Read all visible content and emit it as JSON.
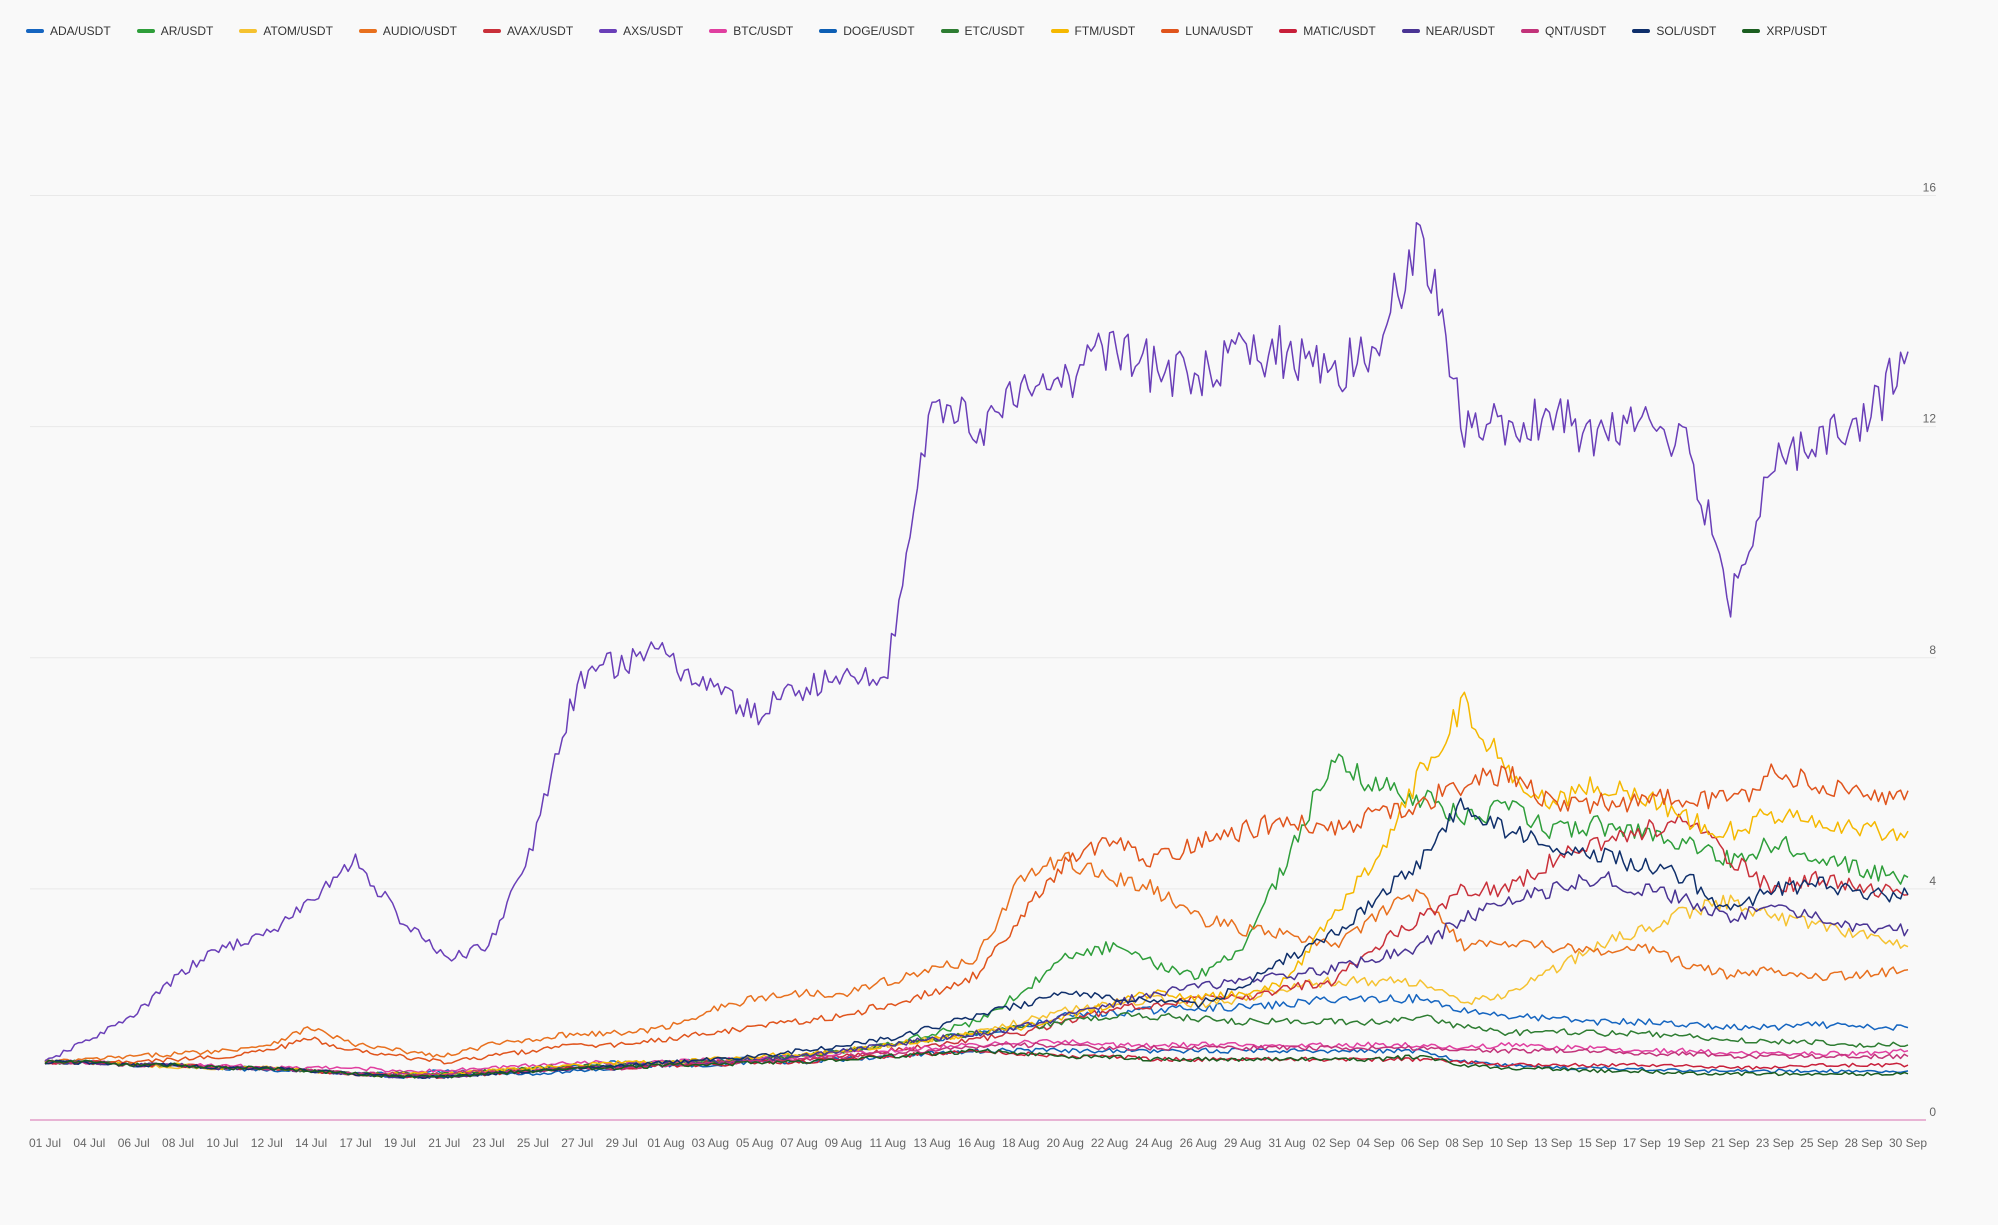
{
  "chart_data": {
    "type": "line",
    "title": "",
    "xlabel": "",
    "ylabel": "",
    "ylim": [
      0,
      18
    ],
    "yticks": [
      0,
      4,
      8,
      12,
      16
    ],
    "grid": "horizontal",
    "legend_position": "top-left",
    "x_ticks": [
      "01 Jul",
      "04 Jul",
      "06 Jul",
      "08 Jul",
      "10 Jul",
      "12 Jul",
      "14 Jul",
      "17 Jul",
      "19 Jul",
      "21 Jul",
      "23 Jul",
      "25 Jul",
      "27 Jul",
      "29 Jul",
      "01 Aug",
      "03 Aug",
      "05 Aug",
      "07 Aug",
      "09 Aug",
      "11 Aug",
      "13 Aug",
      "16 Aug",
      "18 Aug",
      "20 Aug",
      "22 Aug",
      "24 Aug",
      "26 Aug",
      "29 Aug",
      "31 Aug",
      "02 Sep",
      "04 Sep",
      "06 Sep",
      "08 Sep",
      "10 Sep",
      "13 Sep",
      "15 Sep",
      "17 Sep",
      "19 Sep",
      "21 Sep",
      "23 Sep",
      "25 Sep",
      "28 Sep",
      "30 Sep"
    ],
    "series": [
      {
        "name": "ADA/USDT",
        "color": "#1565c0",
        "values": [
          1.0,
          1.0,
          0.95,
          0.95,
          0.9,
          0.9,
          0.85,
          0.8,
          0.8,
          0.85,
          0.85,
          0.9,
          0.95,
          1.0,
          1.0,
          1.05,
          1.05,
          1.1,
          1.2,
          1.3,
          1.4,
          1.5,
          1.6,
          1.8,
          1.85,
          1.9,
          1.95,
          1.95,
          2.0,
          2.1,
          2.1,
          2.1,
          1.9,
          1.8,
          1.75,
          1.7,
          1.7,
          1.65,
          1.6,
          1.6,
          1.65,
          1.6,
          1.6
        ]
      },
      {
        "name": "AR/USDT",
        "color": "#2e9e3a",
        "values": [
          1.0,
          1.0,
          0.95,
          0.95,
          0.9,
          0.9,
          0.85,
          0.8,
          0.75,
          0.8,
          0.85,
          0.85,
          0.9,
          0.95,
          1.0,
          1.0,
          1.05,
          1.1,
          1.2,
          1.3,
          1.5,
          1.7,
          2.2,
          2.8,
          3.0,
          2.7,
          2.5,
          3.0,
          4.5,
          6.2,
          5.8,
          5.6,
          5.2,
          5.4,
          5.0,
          5.1,
          5.0,
          4.8,
          4.5,
          4.8,
          4.6,
          4.3,
          4.2
        ]
      },
      {
        "name": "ATOM/USDT",
        "color": "#f5c230",
        "values": [
          1.0,
          1.0,
          0.95,
          0.9,
          0.9,
          0.9,
          0.85,
          0.8,
          0.75,
          0.8,
          0.85,
          0.9,
          0.9,
          0.95,
          1.0,
          1.0,
          1.05,
          1.1,
          1.2,
          1.3,
          1.4,
          1.5,
          1.7,
          1.9,
          2.0,
          2.1,
          2.0,
          2.1,
          2.3,
          2.4,
          2.4,
          2.4,
          2.0,
          2.2,
          2.6,
          3.0,
          3.3,
          3.6,
          3.8,
          3.5,
          3.4,
          3.2,
          3.0
        ]
      },
      {
        "name": "AUDIO/USDT",
        "color": "#e8701e",
        "values": [
          1.0,
          1.05,
          1.1,
          1.15,
          1.2,
          1.3,
          1.6,
          1.3,
          1.2,
          1.1,
          1.3,
          1.4,
          1.5,
          1.5,
          1.6,
          1.9,
          2.1,
          2.2,
          2.2,
          2.4,
          2.6,
          2.8,
          4.2,
          4.5,
          4.2,
          4.0,
          3.5,
          3.3,
          3.2,
          3.0,
          3.5,
          4.0,
          3.0,
          3.1,
          3.0,
          2.9,
          3.0,
          2.7,
          2.5,
          2.6,
          2.5,
          2.5,
          2.6
        ]
      },
      {
        "name": "AVAX/USDT",
        "color": "#c9303a",
        "values": [
          1.0,
          1.0,
          0.95,
          0.95,
          0.9,
          0.9,
          0.85,
          0.8,
          0.75,
          0.75,
          0.8,
          0.85,
          0.9,
          0.9,
          0.95,
          1.0,
          1.0,
          1.05,
          1.1,
          1.2,
          1.3,
          1.4,
          1.5,
          1.7,
          1.9,
          2.0,
          2.1,
          2.1,
          2.3,
          2.4,
          3.0,
          3.5,
          4.0,
          4.0,
          4.5,
          4.8,
          5.0,
          5.2,
          4.5,
          4.0,
          4.2,
          4.0,
          3.9
        ]
      },
      {
        "name": "AXS/USDT",
        "color": "#6a3fb8",
        "values": [
          1.0,
          1.4,
          1.8,
          2.5,
          3.0,
          3.2,
          3.8,
          4.5,
          3.5,
          2.8,
          3.0,
          4.8,
          7.5,
          8.0,
          8.0,
          7.5,
          7.0,
          7.5,
          7.6,
          7.8,
          12.5,
          12.0,
          12.5,
          12.8,
          13.5,
          13.0,
          12.8,
          13.2,
          13.3,
          13.0,
          13.2,
          15.5,
          12.0,
          12.0,
          12.2,
          11.8,
          12.0,
          11.8,
          9.0,
          11.5,
          11.8,
          12.0,
          13.3
        ]
      },
      {
        "name": "BTC/USDT",
        "color": "#e03fa0",
        "values": [
          1.0,
          1.0,
          0.95,
          0.95,
          0.95,
          0.9,
          0.9,
          0.9,
          0.85,
          0.85,
          0.9,
          0.95,
          1.0,
          1.0,
          1.0,
          1.05,
          1.05,
          1.1,
          1.15,
          1.2,
          1.25,
          1.3,
          1.35,
          1.35,
          1.3,
          1.3,
          1.3,
          1.3,
          1.3,
          1.3,
          1.3,
          1.3,
          1.25,
          1.3,
          1.25,
          1.25,
          1.2,
          1.2,
          1.15,
          1.15,
          1.15,
          1.15,
          1.2
        ]
      },
      {
        "name": "DOGE/USDT",
        "color": "#0d5fb4",
        "values": [
          1.0,
          1.0,
          0.95,
          0.95,
          0.9,
          0.85,
          0.85,
          0.8,
          0.75,
          0.75,
          0.8,
          0.8,
          0.85,
          0.9,
          0.95,
          0.95,
          1.0,
          1.0,
          1.05,
          1.1,
          1.15,
          1.2,
          1.2,
          1.2,
          1.2,
          1.2,
          1.2,
          1.2,
          1.2,
          1.2,
          1.2,
          1.2,
          1.0,
          0.95,
          0.9,
          0.9,
          0.88,
          0.85,
          0.85,
          0.85,
          0.85,
          0.85,
          0.85
        ]
      },
      {
        "name": "ETC/USDT",
        "color": "#2e7d32",
        "values": [
          1.0,
          1.0,
          0.95,
          0.95,
          0.9,
          0.9,
          0.85,
          0.8,
          0.8,
          0.8,
          0.85,
          0.9,
          0.95,
          0.95,
          1.0,
          1.0,
          1.05,
          1.1,
          1.2,
          1.3,
          1.4,
          1.5,
          1.6,
          1.7,
          1.8,
          1.8,
          1.75,
          1.7,
          1.7,
          1.7,
          1.7,
          1.8,
          1.6,
          1.5,
          1.55,
          1.5,
          1.5,
          1.45,
          1.4,
          1.35,
          1.35,
          1.3,
          1.3
        ]
      },
      {
        "name": "FTM/USDT",
        "color": "#f5b800",
        "values": [
          1.0,
          1.0,
          0.95,
          0.95,
          0.9,
          0.9,
          0.85,
          0.8,
          0.8,
          0.8,
          0.85,
          0.9,
          0.95,
          1.0,
          1.0,
          1.05,
          1.1,
          1.15,
          1.2,
          1.3,
          1.4,
          1.5,
          1.6,
          1.8,
          2.0,
          2.2,
          2.1,
          2.2,
          2.4,
          3.5,
          4.5,
          6.0,
          7.2,
          6.0,
          5.5,
          5.8,
          5.6,
          5.2,
          5.0,
          5.3,
          5.2,
          5.0,
          5.0
        ]
      },
      {
        "name": "LUNA/USDT",
        "color": "#e0541c",
        "values": [
          1.0,
          1.0,
          1.0,
          1.05,
          1.1,
          1.2,
          1.4,
          1.2,
          1.1,
          1.0,
          1.1,
          1.2,
          1.3,
          1.3,
          1.4,
          1.5,
          1.6,
          1.7,
          1.8,
          2.0,
          2.2,
          2.5,
          3.5,
          4.5,
          4.8,
          4.5,
          4.8,
          5.0,
          5.2,
          5.0,
          5.3,
          5.5,
          5.8,
          6.0,
          5.5,
          5.5,
          5.5,
          5.6,
          5.5,
          6.0,
          5.8,
          5.6,
          5.7
        ]
      },
      {
        "name": "MATIC/USDT",
        "color": "#c81f3a",
        "values": [
          1.0,
          1.0,
          0.95,
          0.95,
          0.9,
          0.9,
          0.85,
          0.8,
          0.75,
          0.75,
          0.8,
          0.85,
          0.9,
          0.9,
          0.95,
          0.95,
          1.0,
          1.0,
          1.05,
          1.1,
          1.15,
          1.2,
          1.15,
          1.1,
          1.1,
          1.05,
          1.05,
          1.05,
          1.05,
          1.05,
          1.05,
          1.05,
          1.0,
          0.95,
          0.95,
          0.95,
          0.95,
          0.95,
          0.9,
          0.9,
          0.95,
          0.95,
          0.95
        ]
      },
      {
        "name": "NEAR/USDT",
        "color": "#4a3494",
        "values": [
          1.0,
          1.0,
          0.95,
          0.95,
          0.9,
          0.9,
          0.85,
          0.8,
          0.75,
          0.75,
          0.8,
          0.85,
          0.9,
          0.95,
          1.0,
          1.0,
          1.05,
          1.1,
          1.2,
          1.3,
          1.4,
          1.5,
          1.6,
          1.8,
          2.0,
          2.2,
          2.3,
          2.4,
          2.5,
          2.6,
          2.8,
          3.0,
          3.5,
          3.8,
          4.0,
          4.2,
          4.0,
          3.8,
          3.5,
          3.7,
          3.5,
          3.3,
          3.3
        ]
      },
      {
        "name": "QNT/USDT",
        "color": "#c2337a",
        "values": [
          1.0,
          1.0,
          0.95,
          0.95,
          0.9,
          0.9,
          0.85,
          0.8,
          0.8,
          0.8,
          0.85,
          0.85,
          0.9,
          0.9,
          0.95,
          1.0,
          1.0,
          1.05,
          1.1,
          1.15,
          1.2,
          1.25,
          1.3,
          1.3,
          1.25,
          1.25,
          1.25,
          1.25,
          1.25,
          1.25,
          1.25,
          1.25,
          1.2,
          1.2,
          1.2,
          1.2,
          1.15,
          1.15,
          1.1,
          1.1,
          1.1,
          1.1,
          1.1
        ]
      },
      {
        "name": "SOL/USDT",
        "color": "#0f2f6b",
        "values": [
          1.0,
          1.0,
          0.95,
          0.95,
          0.9,
          0.9,
          0.85,
          0.8,
          0.75,
          0.75,
          0.8,
          0.85,
          0.9,
          0.95,
          1.0,
          1.05,
          1.1,
          1.2,
          1.3,
          1.4,
          1.6,
          1.8,
          2.0,
          2.2,
          2.1,
          2.1,
          2.0,
          2.3,
          2.8,
          3.2,
          3.8,
          4.5,
          5.5,
          5.0,
          4.8,
          4.6,
          4.4,
          4.2,
          3.6,
          4.0,
          4.1,
          3.9,
          3.9
        ]
      },
      {
        "name": "XRP/USDT",
        "color": "#1b5e20",
        "values": [
          1.0,
          1.0,
          0.95,
          0.95,
          0.9,
          0.9,
          0.85,
          0.8,
          0.75,
          0.75,
          0.8,
          0.85,
          0.9,
          0.9,
          0.95,
          0.95,
          1.0,
          1.0,
          1.05,
          1.1,
          1.15,
          1.2,
          1.15,
          1.1,
          1.1,
          1.05,
          1.05,
          1.05,
          1.05,
          1.05,
          1.05,
          1.1,
          0.95,
          0.9,
          0.88,
          0.85,
          0.85,
          0.8,
          0.8,
          0.8,
          0.8,
          0.8,
          0.8
        ]
      }
    ]
  }
}
